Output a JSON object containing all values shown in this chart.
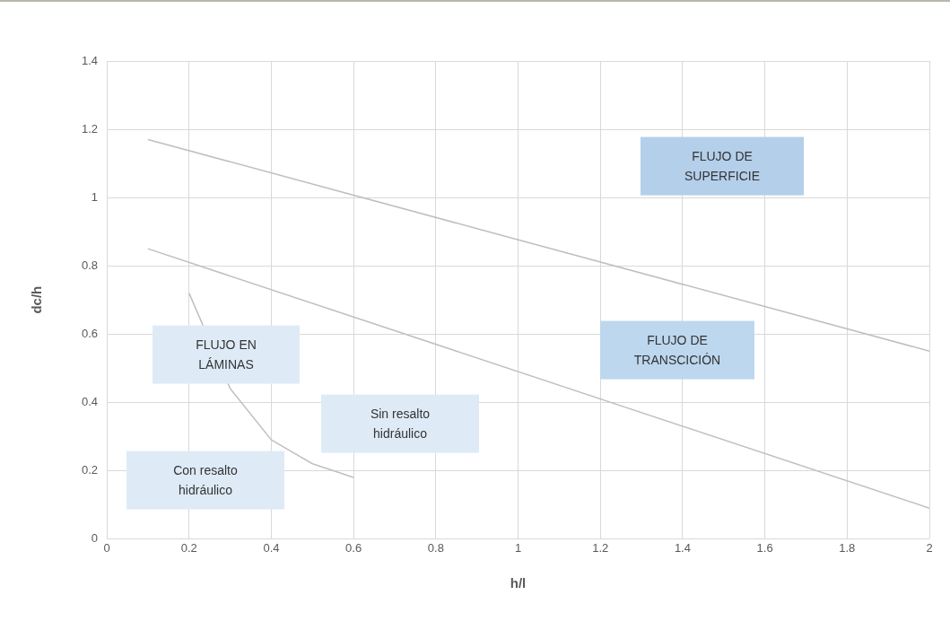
{
  "chart_data": {
    "type": "line",
    "xlabel": "h/l",
    "ylabel": "dc/h",
    "xlim": [
      0,
      2
    ],
    "xticks": [
      0,
      0.2,
      0.4,
      0.6,
      0.8,
      1,
      1.2,
      1.4,
      1.6,
      1.8,
      2
    ],
    "ylim": [
      0,
      1.4
    ],
    "yticks": [
      0,
      0.2,
      0.4,
      0.6,
      0.8,
      1,
      1.2,
      1.4
    ],
    "grid": true,
    "legend": false,
    "marker": "none",
    "line_style": "solid",
    "series": [
      {
        "color": "#bfbfbf",
        "x": [
          0.1,
          2
        ],
        "values": [
          1.17,
          0.55
        ]
      },
      {
        "color": "#bfbfbf",
        "x": [
          0.1,
          2
        ],
        "values": [
          0.85,
          0.09
        ]
      },
      {
        "color": "#bfbfbf",
        "x": [
          0.2,
          0.3,
          0.4,
          0.5,
          0.6
        ],
        "values": [
          0.72,
          0.44,
          0.29,
          0.22,
          0.18
        ]
      }
    ],
    "annotations": [
      "FLUJO DE SUPERFICIE",
      "FLUJO DE TRANSCICIÓN",
      "FLUJO EN LÁMINAS",
      "Sin resalto hidráulico",
      "Con resalto hidráulico"
    ]
  }
}
